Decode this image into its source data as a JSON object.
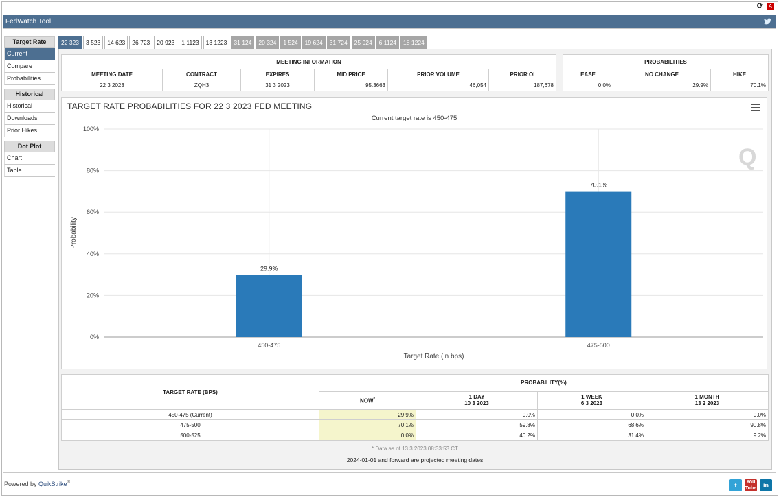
{
  "app": {
    "title": "FedWatch Tool"
  },
  "sidebar": {
    "sections": [
      {
        "heading": "Target Rate",
        "items": [
          "Current",
          "Compare",
          "Probabilities"
        ],
        "active": "Current"
      },
      {
        "heading": "Historical",
        "items": [
          "Historical",
          "Downloads",
          "Prior Hikes"
        ]
      },
      {
        "heading": "Dot Plot",
        "items": [
          "Chart",
          "Table"
        ]
      }
    ]
  },
  "tabs": [
    {
      "label": "22 323",
      "state": "active"
    },
    {
      "label": "3 523",
      "state": "normal"
    },
    {
      "label": "14 623",
      "state": "normal"
    },
    {
      "label": "26 723",
      "state": "normal"
    },
    {
      "label": "20 923",
      "state": "normal"
    },
    {
      "label": "1 1123",
      "state": "normal"
    },
    {
      "label": "13 1223",
      "state": "normal"
    },
    {
      "label": "31 124",
      "state": "gray"
    },
    {
      "label": "20 324",
      "state": "gray"
    },
    {
      "label": "1 524",
      "state": "gray"
    },
    {
      "label": "19 624",
      "state": "gray"
    },
    {
      "label": "31 724",
      "state": "gray"
    },
    {
      "label": "25 924",
      "state": "gray"
    },
    {
      "label": "6 1124",
      "state": "gray"
    },
    {
      "label": "18 1224",
      "state": "gray"
    }
  ],
  "meeting_info": {
    "heading": "MEETING INFORMATION",
    "columns": [
      "MEETING DATE",
      "CONTRACT",
      "EXPIRES",
      "MID PRICE",
      "PRIOR VOLUME",
      "PRIOR OI"
    ],
    "row": [
      "22 3 2023",
      "ZQH3",
      "31 3 2023",
      "95.3663",
      "46,054",
      "187,678"
    ]
  },
  "probabilities": {
    "heading": "PROBABILITIES",
    "columns": [
      "EASE",
      "NO CHANGE",
      "HIKE"
    ],
    "row": [
      "0.0%",
      "29.9%",
      "70.1%"
    ]
  },
  "chart_title": "TARGET RATE PROBABILITIES FOR 22 3 2023 FED MEETING",
  "chart_subtitle": "Current target rate is 450-475",
  "chart_data": {
    "type": "bar",
    "categories": [
      "450-475",
      "475-500"
    ],
    "values": [
      29.9,
      70.1
    ],
    "data_labels": [
      "29.9%",
      "70.1%"
    ],
    "xlabel": "Target Rate (in bps)",
    "ylabel": "Probability",
    "ylim": [
      0,
      100
    ],
    "yticks": [
      "0%",
      "20%",
      "40%",
      "60%",
      "80%",
      "100%"
    ],
    "bar_color": "#2a7ab9",
    "grid": true
  },
  "prob_table": {
    "rate_heading": "TARGET RATE (BPS)",
    "prob_heading": "PROBABILITY(%)",
    "cols": [
      {
        "l1": "NOW",
        "l2": ""
      },
      {
        "l1": "1 DAY",
        "l2": "10 3 2023"
      },
      {
        "l1": "1 WEEK",
        "l2": "6 3 2023"
      },
      {
        "l1": "1 MONTH",
        "l2": "13 2 2023"
      }
    ],
    "now_marker": "*",
    "rows": [
      {
        "rate": "450-475 (Current)",
        "vals": [
          "29.9%",
          "0.0%",
          "0.0%",
          "0.0%"
        ]
      },
      {
        "rate": "475-500",
        "vals": [
          "70.1%",
          "59.8%",
          "68.6%",
          "90.8%"
        ]
      },
      {
        "rate": "500-525",
        "vals": [
          "0.0%",
          "40.2%",
          "31.4%",
          "9.2%"
        ]
      }
    ]
  },
  "data_note": "* Data as of 13 3 2023 08:33:53 CT",
  "footer_note": "2024-01-01 and forward are projected meeting dates",
  "powered_by": {
    "prefix": "Powered by ",
    "brand": "QuikStrike",
    "reg": "®"
  },
  "social": [
    "twitter-icon",
    "youtube-icon",
    "linkedin-icon"
  ]
}
